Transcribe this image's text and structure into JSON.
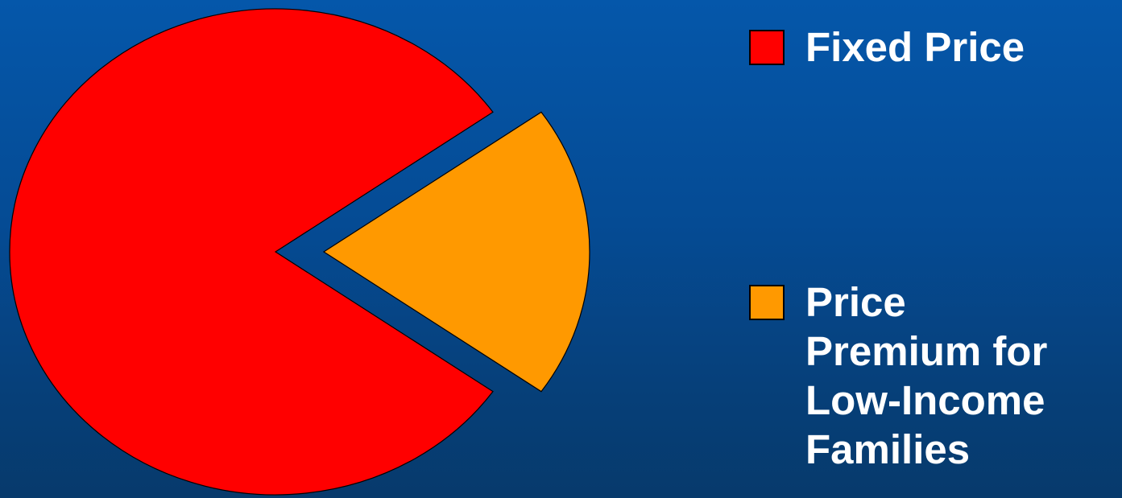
{
  "chart_data": {
    "type": "pie",
    "title": "",
    "series": [
      {
        "labels": [
          "Fixed Price",
          "Price Premium for Low-Income Families"
        ],
        "values": [
          80.5,
          19.5
        ],
        "colors": [
          "#ff0000",
          "#ff9900"
        ]
      }
    ],
    "exploded_slice": "Price Premium for Low-Income Families",
    "legend": {
      "placement": "right",
      "entries": [
        {
          "label": "Fixed Price",
          "lines": [
            "Fixed Price"
          ],
          "color": "#ff0000"
        },
        {
          "label": "Price Premium for Low-Income Families",
          "lines": [
            "Price",
            "Premium for",
            "Low-Income",
            "Families"
          ],
          "color": "#ff9900"
        }
      ]
    }
  }
}
